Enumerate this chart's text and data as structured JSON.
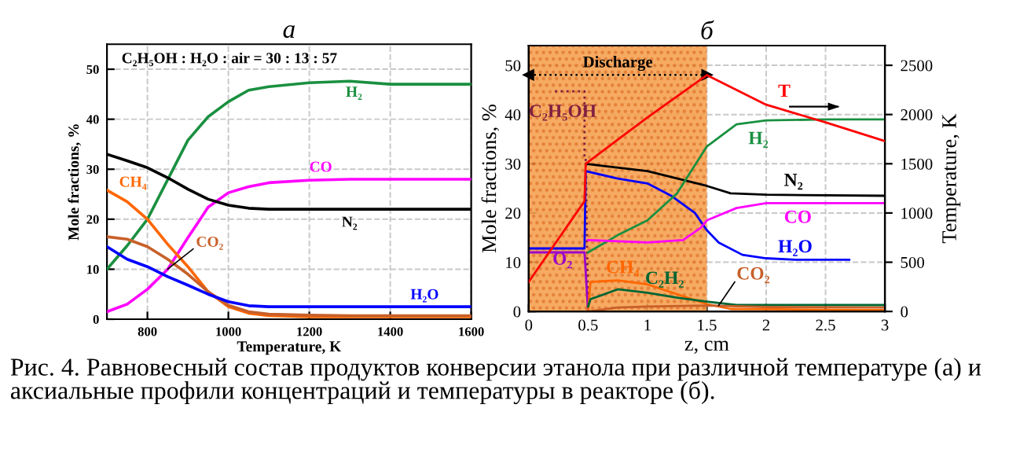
{
  "chart_data": [
    {
      "type": "line",
      "title": "а",
      "xlabel": "Temperature, K",
      "ylabel": "Mole fractions, %",
      "x": [
        700,
        750,
        800,
        850,
        900,
        950,
        1000,
        1050,
        1100,
        1200,
        1300,
        1400,
        1500,
        1600
      ],
      "xlim": [
        700,
        1600
      ],
      "xticks": [
        800,
        1000,
        1200,
        1400,
        1600
      ],
      "ylim": [
        0,
        55
      ],
      "yticks": [
        0,
        10,
        20,
        30,
        40,
        50
      ],
      "grid": true,
      "legend": false,
      "annotations": [
        "C₂H₅OH : H₂O : air = 30 : 13 : 57"
      ],
      "series": [
        {
          "name": "H₂",
          "color": "#1a9040",
          "values": [
            10,
            14.7,
            20,
            27.9,
            35.8,
            40.5,
            43.5,
            45.8,
            46.5,
            47.3,
            47.6,
            47,
            47,
            47
          ]
        },
        {
          "name": "CO",
          "color": "#ff00ff",
          "values": [
            1.5,
            3,
            6,
            10,
            16.3,
            22.4,
            25.3,
            26.5,
            27.3,
            27.8,
            28,
            28,
            28,
            28
          ]
        },
        {
          "name": "N₂",
          "color": "#000000",
          "values": [
            33,
            31.7,
            30.3,
            28.3,
            26,
            24,
            22.8,
            22.2,
            22,
            22,
            22,
            22,
            22,
            22
          ]
        },
        {
          "name": "CH₄",
          "color": "#ff6600",
          "values": [
            25.8,
            23.5,
            20,
            15,
            10.5,
            5.5,
            2.5,
            1.2,
            0.7,
            0.5,
            0.5,
            0.5,
            0.5,
            0.5
          ]
        },
        {
          "name": "CO₂",
          "color": "#c8602a",
          "values": [
            16.5,
            16,
            14.5,
            12,
            9,
            5.5,
            2.8,
            1.5,
            1,
            0.8,
            0.7,
            0.7,
            0.7,
            0.7
          ]
        },
        {
          "name": "H₂O",
          "color": "#0000ff",
          "values": [
            14.5,
            12,
            10.5,
            8.5,
            6.8,
            5,
            3.5,
            2.7,
            2.5,
            2.5,
            2.5,
            2.5,
            2.5,
            2.5
          ]
        }
      ]
    },
    {
      "type": "line",
      "title": "б",
      "xlabel": "z, cm",
      "ylabel": "Mole fractions, %",
      "y2label": "Temperature, K",
      "xlim": [
        0,
        3
      ],
      "xticks": [
        0,
        0.5,
        1,
        1.5,
        2,
        2.5,
        3
      ],
      "ylim": [
        0,
        54
      ],
      "yticks": [
        0,
        10,
        20,
        30,
        40,
        50
      ],
      "y2lim": [
        0,
        2700
      ],
      "y2ticks": [
        0,
        500,
        1000,
        1500,
        2000,
        2500
      ],
      "grid": true,
      "legend": false,
      "bands": [
        {
          "axis": "x",
          "from": 0,
          "to": 1.5,
          "label": "Discharge",
          "color": "#f5a050"
        }
      ],
      "annotations": [
        "Рис. 4. Равновесный состав продуктов конверсии этанола при различной температуре (а) и аксиальные профили концентраций и температуры в реакторе (б)."
      ],
      "series": [
        {
          "name": "T",
          "color": "#ff0000",
          "axis": "y2",
          "x": [
            0,
            0.2,
            0.47,
            0.48,
            1.0,
            1.5,
            2.0,
            2.5,
            3
          ],
          "values": [
            300,
            650,
            1120,
            1500,
            1970,
            2400,
            2100,
            1920,
            1730
          ]
        },
        {
          "name": "C₂H₅OH",
          "color": "#802040",
          "line_style": "dotted",
          "x": [
            0.22,
            0.47,
            0.47,
            0.48,
            0.5
          ],
          "values": [
            44.7,
            44.7,
            31,
            31,
            0
          ]
        },
        {
          "name": "O₂",
          "color": "#9900cc",
          "x": [
            0,
            0.47,
            0.5
          ],
          "values": [
            12,
            12,
            0
          ]
        },
        {
          "name": "H₂O",
          "color": "#0000ff",
          "x": [
            0,
            0.47,
            0.48,
            0.75,
            1.0,
            1.2,
            1.4,
            1.5,
            1.6,
            1.8,
            2.0,
            2.25,
            2.7
          ],
          "values": [
            12.8,
            12.8,
            28.5,
            27,
            26,
            23.5,
            20,
            16.5,
            14,
            11.5,
            10.8,
            10.5,
            10.5
          ]
        },
        {
          "name": "N₂",
          "color": "#000000",
          "x": [
            0.48,
            1.0,
            1.5,
            1.7,
            2.0,
            3
          ],
          "values": [
            30,
            28.5,
            25.5,
            24,
            23.7,
            23.5
          ]
        },
        {
          "name": "H₂",
          "color": "#1a9040",
          "x": [
            0.5,
            0.75,
            1.0,
            1.25,
            1.5,
            1.75,
            2.0,
            2.5,
            3
          ],
          "values": [
            12,
            15.5,
            18.5,
            24,
            33.5,
            38,
            38.8,
            39,
            39
          ]
        },
        {
          "name": "CO",
          "color": "#ff00ff",
          "x": [
            0.5,
            1.0,
            1.3,
            1.45,
            1.5,
            1.75,
            2.0,
            3
          ],
          "values": [
            14.5,
            14,
            14.5,
            17,
            18.5,
            21,
            22,
            22
          ]
        },
        {
          "name": "CH₄",
          "color": "#ff6600",
          "x": [
            0.5,
            0.52,
            0.75,
            1.0,
            1.25,
            1.5,
            1.7,
            3
          ],
          "values": [
            0,
            6,
            6.3,
            5.5,
            3.5,
            1.5,
            0.5,
            0.3
          ]
        },
        {
          "name": "C₂H₂",
          "color": "#006633",
          "x": [
            0.5,
            0.52,
            0.75,
            1.0,
            1.25,
            1.5,
            1.75,
            3
          ],
          "values": [
            1,
            2.5,
            4.5,
            3.8,
            2.8,
            2,
            1.3,
            1.3
          ]
        },
        {
          "name": "CO₂",
          "color": "#c8602a",
          "x": [
            0.5,
            0.75,
            1.0,
            1.5,
            2.0,
            3
          ],
          "values": [
            0,
            0.8,
            1.0,
            1.2,
            0.9,
            0.8
          ]
        }
      ]
    }
  ]
}
